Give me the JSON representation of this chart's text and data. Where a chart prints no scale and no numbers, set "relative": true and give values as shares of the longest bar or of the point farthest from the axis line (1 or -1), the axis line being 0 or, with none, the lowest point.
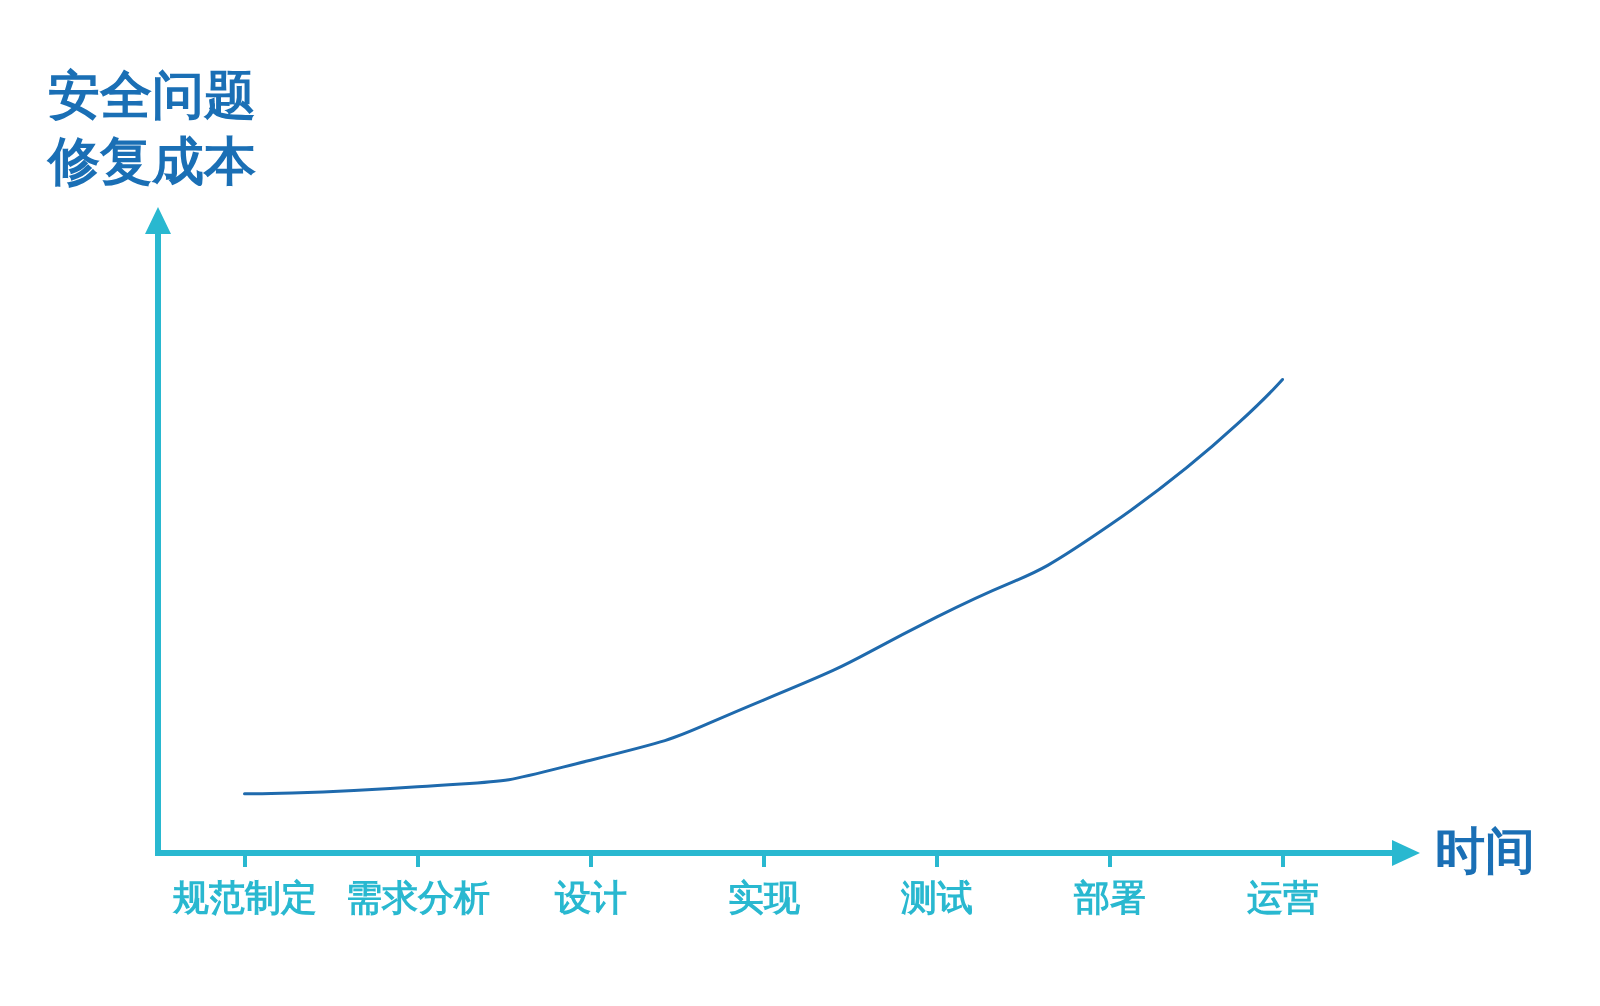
{
  "chart_data": {
    "type": "line",
    "relative": true,
    "xlabel": "时间",
    "ylabel": "安全问题修复成本",
    "categories": [
      "规范制定",
      "需求分析",
      "设计",
      "实现",
      "测试",
      "部署",
      "运营"
    ],
    "series": [
      {
        "color": "#1f6aad",
        "values": [
          0.125,
          0.14,
          0.196,
          0.323,
          0.498,
          0.692,
          1
        ]
      }
    ],
    "marker": "none",
    "line_style": "solid"
  }
}
